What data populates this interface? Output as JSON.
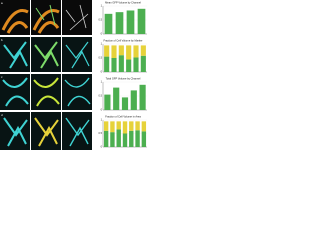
{
  "figure": {
    "panel_labels": [
      "a",
      "b",
      "c",
      "d"
    ]
  },
  "chart_data": [
    {
      "type": "bar",
      "title": "Mean GFP Volume by Channel",
      "values": [
        0.72,
        0.78,
        0.84,
        0.9
      ],
      "color": "#4caf50",
      "ylim": [
        0,
        1
      ],
      "yticks": [
        0,
        0.5,
        1
      ],
      "grid": true
    },
    {
      "type": "stacked_bar",
      "title": "Fraction of Cell Volume by Marker",
      "series": [
        {
          "color": "#4caf50",
          "values": [
            0.55,
            0.5,
            0.6,
            0.45,
            0.52,
            0.58
          ]
        },
        {
          "color": "#e6d23a",
          "values": [
            0.4,
            0.45,
            0.35,
            0.5,
            0.43,
            0.37
          ]
        }
      ],
      "ylim": [
        0,
        1
      ],
      "yticks": [
        0,
        0.5,
        1
      ],
      "grid": true
    },
    {
      "type": "bar",
      "title": "Total GFP Volume by Channel",
      "values": [
        0.55,
        0.8,
        0.45,
        0.7,
        0.9
      ],
      "color": "#4caf50",
      "ylim": [
        0,
        1
      ],
      "yticks": [
        0,
        0.5,
        1
      ],
      "grid": true
    },
    {
      "type": "stacked_bar",
      "title": "Fraction of Cell Volume in Area",
      "series": [
        {
          "color": "#4caf50",
          "values": [
            0.6,
            0.55,
            0.65,
            0.5,
            0.6,
            0.62,
            0.58
          ]
        },
        {
          "color": "#e6d23a",
          "values": [
            0.35,
            0.4,
            0.3,
            0.45,
            0.35,
            0.33,
            0.37
          ]
        }
      ],
      "ylim": [
        0,
        1
      ],
      "yticks": [
        0,
        0.5,
        1
      ],
      "grid": true
    }
  ]
}
